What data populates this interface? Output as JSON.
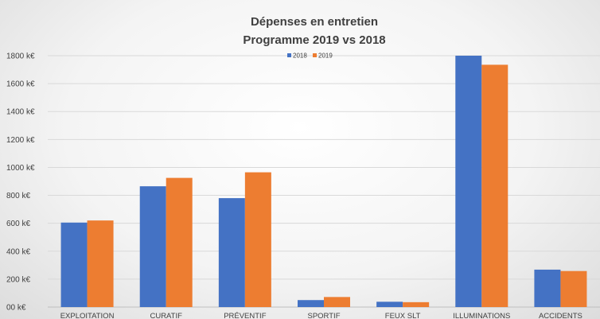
{
  "chart_data": {
    "type": "bar",
    "title_line1": "Dépenses en entretien",
    "title_line2": "Programme 2019 vs 2018",
    "categories": [
      "EXPLOITATION",
      "CURATIF",
      "PRÉVENTIF",
      "SPORTIF",
      "FEUX SLT",
      "ILLUMINATIONS",
      "ACCIDENTS"
    ],
    "series": [
      {
        "name": "2018",
        "color": "#4472C4",
        "values": [
          605,
          865,
          780,
          50,
          38,
          1800,
          268
        ]
      },
      {
        "name": "2019",
        "color": "#ED7D31",
        "values": [
          620,
          925,
          965,
          72,
          35,
          1735,
          258
        ]
      }
    ],
    "yticks": [
      "00 k€",
      "200 k€",
      "400 k€",
      "600 k€",
      "800 k€",
      "1000 k€",
      "1200 k€",
      "1400 k€",
      "1600 k€",
      "1800 k€"
    ],
    "ylim": [
      0,
      1800
    ],
    "grid": true,
    "legend_position": "top-center"
  }
}
